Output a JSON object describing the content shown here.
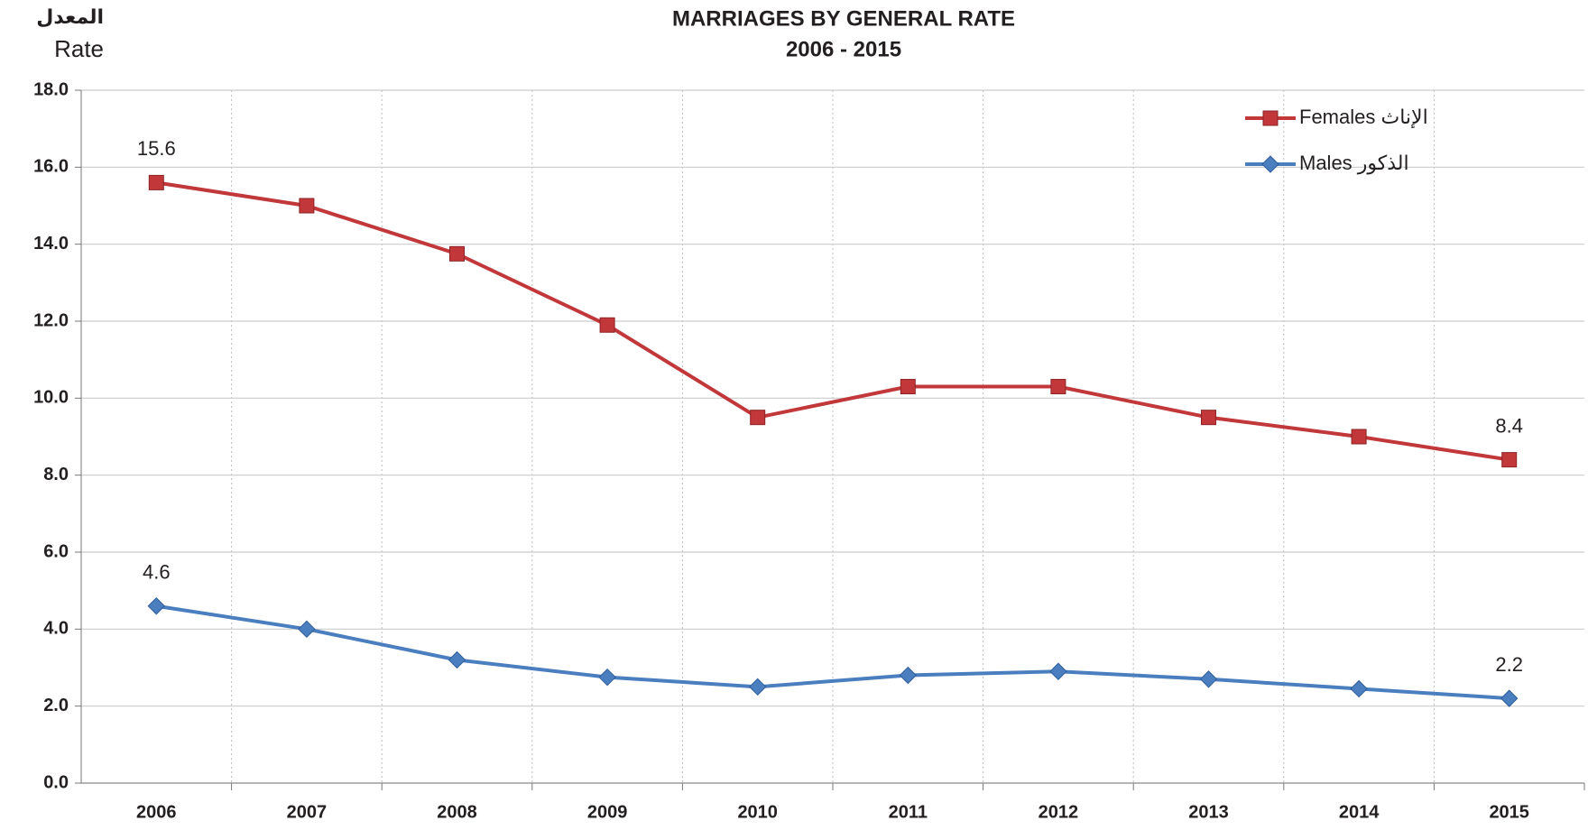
{
  "chart_data": {
    "type": "line",
    "title": "MARRIAGES BY GENERAL RATE",
    "subtitle": "2006 - 2015",
    "y_label_ar": "المعدل",
    "y_label": "Rate",
    "categories": [
      "2006",
      "2007",
      "2008",
      "2009",
      "2010",
      "2011",
      "2012",
      "2013",
      "2014",
      "2015"
    ],
    "series": [
      {
        "name": "Females الإناث",
        "color": "#c1373a",
        "marker": "square",
        "values": [
          15.6,
          15.0,
          13.75,
          11.9,
          9.5,
          10.3,
          10.3,
          9.5,
          9.0,
          8.4
        ],
        "value_labels": [
          "15.6",
          null,
          null,
          null,
          null,
          null,
          null,
          null,
          null,
          "8.4"
        ]
      },
      {
        "name": "Males الذكور",
        "color": "#4a7ebf",
        "marker": "diamond",
        "values": [
          4.6,
          4.0,
          3.2,
          2.75,
          2.5,
          2.8,
          2.9,
          2.7,
          2.45,
          2.2
        ],
        "value_labels": [
          "4.6",
          null,
          null,
          null,
          null,
          null,
          null,
          null,
          null,
          "2.2"
        ]
      }
    ],
    "ylim": [
      0,
      18
    ],
    "yticks": [
      {
        "value": 0,
        "label": "0.0"
      },
      {
        "value": 2,
        "label": "2.0"
      },
      {
        "value": 4,
        "label": "4.0"
      },
      {
        "value": 6,
        "label": "6.0"
      },
      {
        "value": 8,
        "label": "8.0"
      },
      {
        "value": 10,
        "label": "10.0"
      },
      {
        "value": 12,
        "label": "12.0"
      },
      {
        "value": 14,
        "label": "14.0"
      },
      {
        "value": 16,
        "label": "16.0"
      },
      {
        "value": 18,
        "label": "18.0"
      }
    ],
    "grid": true,
    "legend": "upper right"
  }
}
